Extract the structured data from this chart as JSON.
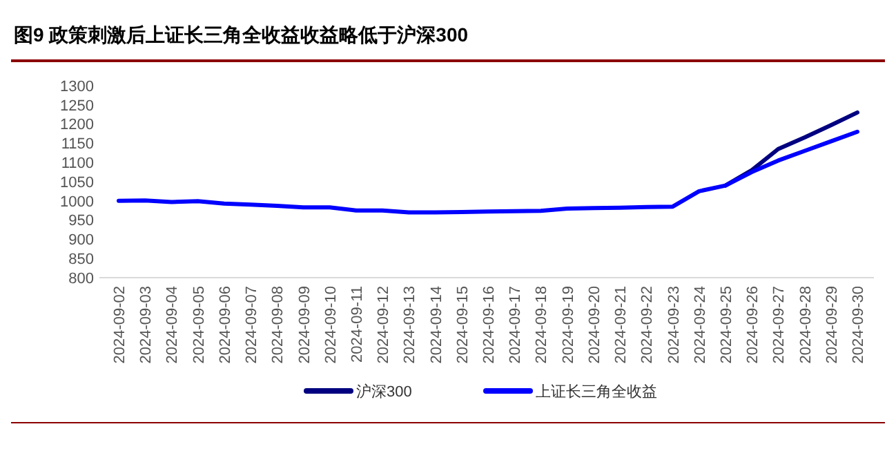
{
  "chart_data": {
    "type": "line",
    "title": "图9  政策刺激后上证长三角全收益收益略低于沪深300",
    "categories": [
      "2024-09-02",
      "2024-09-03",
      "2024-09-04",
      "2024-09-05",
      "2024-09-06",
      "2024-09-07",
      "2024-09-08",
      "2024-09-09",
      "2024-09-10",
      "2024-09-11",
      "2024-09-12",
      "2024-09-13",
      "2024-09-14",
      "2024-09-15",
      "2024-09-16",
      "2024-09-17",
      "2024-09-18",
      "2024-09-19",
      "2024-09-20",
      "2024-09-21",
      "2024-09-22",
      "2024-09-23",
      "2024-09-24",
      "2024-09-25",
      "2024-09-26",
      "2024-09-27",
      "2024-09-28",
      "2024-09-29",
      "2024-09-30"
    ],
    "series": [
      {
        "name": "沪深300",
        "color": "#000080",
        "values": [
          null,
          null,
          null,
          null,
          null,
          null,
          null,
          null,
          null,
          null,
          null,
          null,
          null,
          null,
          null,
          null,
          null,
          null,
          null,
          null,
          null,
          null,
          null,
          1040,
          1080,
          1135,
          1165,
          1197,
          1230
        ]
      },
      {
        "name": "上证长三角全收益",
        "color": "#0000ff",
        "values": [
          1000,
          1001,
          997,
          999,
          993,
          990,
          987,
          983,
          983,
          975,
          975,
          970,
          970,
          971,
          972,
          973,
          974,
          980,
          981,
          982,
          984,
          985,
          1025,
          1040,
          1075,
          1105,
          1130,
          1155,
          1180
        ]
      }
    ],
    "ylim": [
      800,
      1300
    ],
    "yticks": [
      800,
      850,
      900,
      950,
      1000,
      1050,
      1100,
      1150,
      1200,
      1250,
      1300
    ],
    "grid": false,
    "legend": "bottom",
    "marker": "none",
    "line_style": "solid"
  }
}
